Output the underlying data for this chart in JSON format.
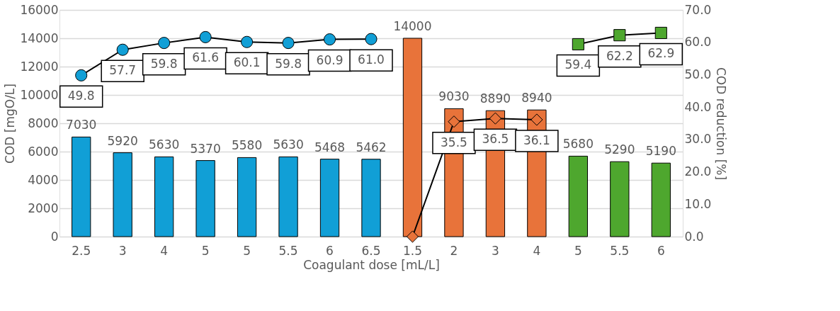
{
  "chart_data": {
    "type": "bar",
    "xlabel": "Coagulant dose [mL/L]",
    "ylabel": "COD [mgO/L]",
    "y2label": "COD reduction [%]",
    "categories": [
      "2.5",
      "3",
      "4",
      "5",
      "5",
      "5.5",
      "6",
      "6.5",
      "1.5",
      "2",
      "3",
      "4",
      "5",
      "5.5",
      "6"
    ],
    "series": [
      {
        "values": [
          7030,
          5920,
          5630,
          5370,
          5580,
          5630,
          5468,
          5462,
          14000,
          9030,
          8890,
          8940,
          5680,
          5290,
          5190
        ],
        "colors": [
          "#119fd6",
          "#119fd6",
          "#119fd6",
          "#119fd6",
          "#119fd6",
          "#119fd6",
          "#119fd6",
          "#119fd6",
          "#e8733a",
          "#e8733a",
          "#e8733a",
          "#e8733a",
          "#4ea72e",
          "#4ea72e",
          "#4ea72e"
        ]
      },
      {
        "type": "line",
        "axis": "y2",
        "marker": "circle",
        "color": "#119fd6",
        "values": [
          49.8,
          57.7,
          59.8,
          61.6,
          60.1,
          59.8,
          60.9,
          61.0,
          null,
          null,
          null,
          null,
          null,
          null,
          null
        ],
        "value_labels": [
          "49.8",
          "57.7",
          "59.8",
          "61.6",
          "60.1",
          "59.8",
          "60.9",
          "61.0",
          null,
          null,
          null,
          null,
          null,
          null,
          null
        ]
      },
      {
        "type": "line",
        "axis": "y2",
        "marker": "diamond",
        "color": "#e8733a",
        "values": [
          null,
          null,
          null,
          null,
          null,
          null,
          null,
          null,
          0.0,
          35.5,
          36.5,
          36.1,
          null,
          null,
          null
        ],
        "value_labels": [
          null,
          null,
          null,
          null,
          null,
          null,
          null,
          null,
          null,
          "35.5",
          "36.5",
          "36.1",
          null,
          null,
          null
        ]
      },
      {
        "type": "line",
        "axis": "y2",
        "marker": "square",
        "color": "#4ea72e",
        "values": [
          null,
          null,
          null,
          null,
          null,
          null,
          null,
          null,
          null,
          null,
          null,
          null,
          59.4,
          62.2,
          62.9
        ],
        "value_labels": [
          null,
          null,
          null,
          null,
          null,
          null,
          null,
          null,
          null,
          null,
          null,
          null,
          "59.4",
          "62.2",
          "62.9"
        ]
      }
    ],
    "ylim": [
      0,
      16000
    ],
    "yticks": [
      0,
      2000,
      4000,
      6000,
      8000,
      10000,
      12000,
      14000,
      16000
    ],
    "y2lim": [
      0,
      70
    ],
    "y2ticks": [
      {
        "value": 0,
        "label": "0.0"
      },
      {
        "value": 10,
        "label": "10.0"
      },
      {
        "value": 20,
        "label": "20.0"
      },
      {
        "value": 30,
        "label": "30.0"
      },
      {
        "value": 40,
        "label": "40.0"
      },
      {
        "value": 50,
        "label": "50.0"
      },
      {
        "value": 60,
        "label": "60.0"
      },
      {
        "value": 70,
        "label": "70.0"
      }
    ],
    "grid": "y",
    "data_labels": true
  }
}
